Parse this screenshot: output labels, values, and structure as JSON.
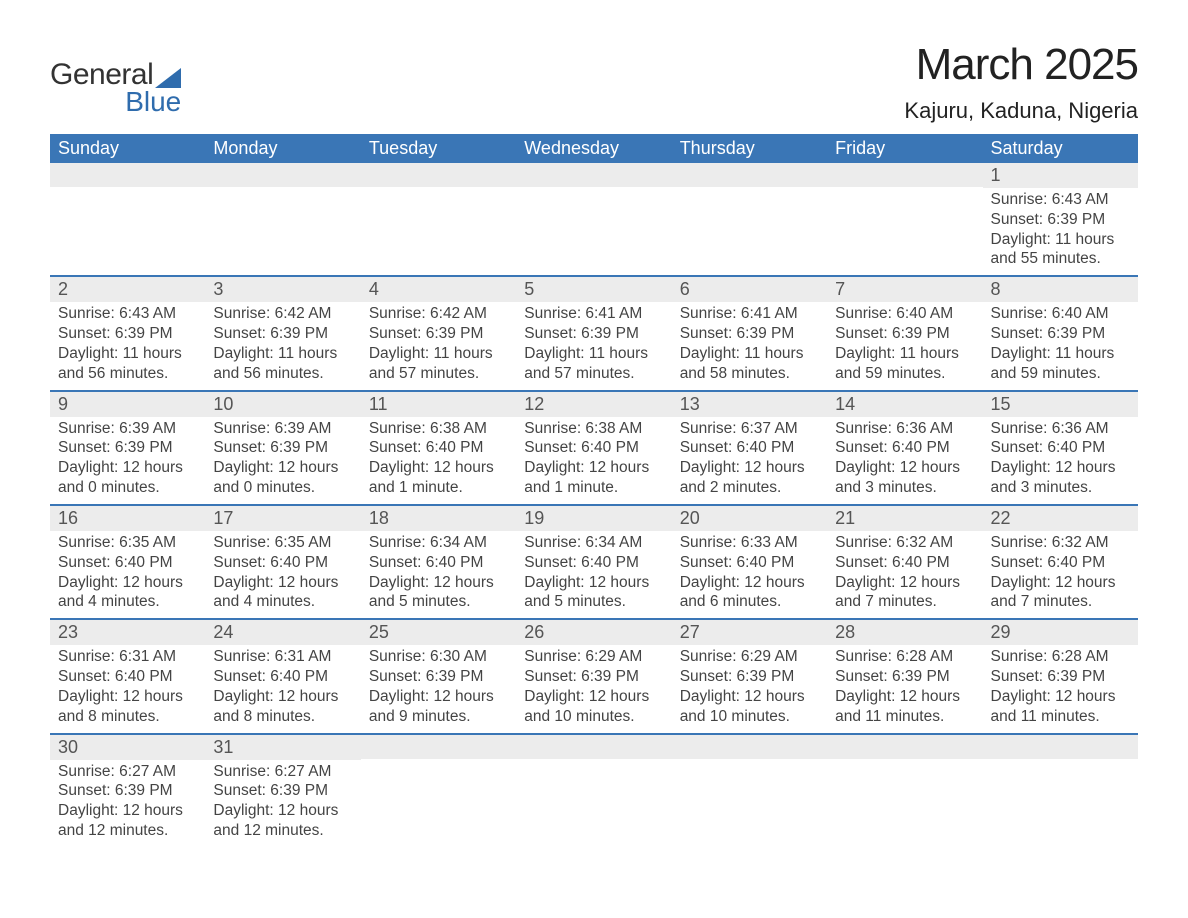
{
  "brand": {
    "general": "General",
    "blue": "Blue",
    "accent_color": "#2f6cad"
  },
  "title": "March 2025",
  "location": "Kajuru, Kaduna, Nigeria",
  "header_bg": "#3a76b6",
  "header_text_color": "#ffffff",
  "daynum_bg": "#ececec",
  "row_border_color": "#3a76b6",
  "body_text_color": "#444444",
  "fonts": {
    "title_size_pt": 33,
    "location_size_pt": 17,
    "header_size_pt": 14,
    "body_size_pt": 12
  },
  "weekdays": [
    "Sunday",
    "Monday",
    "Tuesday",
    "Wednesday",
    "Thursday",
    "Friday",
    "Saturday"
  ],
  "weeks": [
    [
      {
        "day": "",
        "sunrise": "",
        "sunset": "",
        "daylight": ""
      },
      {
        "day": "",
        "sunrise": "",
        "sunset": "",
        "daylight": ""
      },
      {
        "day": "",
        "sunrise": "",
        "sunset": "",
        "daylight": ""
      },
      {
        "day": "",
        "sunrise": "",
        "sunset": "",
        "daylight": ""
      },
      {
        "day": "",
        "sunrise": "",
        "sunset": "",
        "daylight": ""
      },
      {
        "day": "",
        "sunrise": "",
        "sunset": "",
        "daylight": ""
      },
      {
        "day": "1",
        "sunrise": "Sunrise: 6:43 AM",
        "sunset": "Sunset: 6:39 PM",
        "daylight": "Daylight: 11 hours and 55 minutes."
      }
    ],
    [
      {
        "day": "2",
        "sunrise": "Sunrise: 6:43 AM",
        "sunset": "Sunset: 6:39 PM",
        "daylight": "Daylight: 11 hours and 56 minutes."
      },
      {
        "day": "3",
        "sunrise": "Sunrise: 6:42 AM",
        "sunset": "Sunset: 6:39 PM",
        "daylight": "Daylight: 11 hours and 56 minutes."
      },
      {
        "day": "4",
        "sunrise": "Sunrise: 6:42 AM",
        "sunset": "Sunset: 6:39 PM",
        "daylight": "Daylight: 11 hours and 57 minutes."
      },
      {
        "day": "5",
        "sunrise": "Sunrise: 6:41 AM",
        "sunset": "Sunset: 6:39 PM",
        "daylight": "Daylight: 11 hours and 57 minutes."
      },
      {
        "day": "6",
        "sunrise": "Sunrise: 6:41 AM",
        "sunset": "Sunset: 6:39 PM",
        "daylight": "Daylight: 11 hours and 58 minutes."
      },
      {
        "day": "7",
        "sunrise": "Sunrise: 6:40 AM",
        "sunset": "Sunset: 6:39 PM",
        "daylight": "Daylight: 11 hours and 59 minutes."
      },
      {
        "day": "8",
        "sunrise": "Sunrise: 6:40 AM",
        "sunset": "Sunset: 6:39 PM",
        "daylight": "Daylight: 11 hours and 59 minutes."
      }
    ],
    [
      {
        "day": "9",
        "sunrise": "Sunrise: 6:39 AM",
        "sunset": "Sunset: 6:39 PM",
        "daylight": "Daylight: 12 hours and 0 minutes."
      },
      {
        "day": "10",
        "sunrise": "Sunrise: 6:39 AM",
        "sunset": "Sunset: 6:39 PM",
        "daylight": "Daylight: 12 hours and 0 minutes."
      },
      {
        "day": "11",
        "sunrise": "Sunrise: 6:38 AM",
        "sunset": "Sunset: 6:40 PM",
        "daylight": "Daylight: 12 hours and 1 minute."
      },
      {
        "day": "12",
        "sunrise": "Sunrise: 6:38 AM",
        "sunset": "Sunset: 6:40 PM",
        "daylight": "Daylight: 12 hours and 1 minute."
      },
      {
        "day": "13",
        "sunrise": "Sunrise: 6:37 AM",
        "sunset": "Sunset: 6:40 PM",
        "daylight": "Daylight: 12 hours and 2 minutes."
      },
      {
        "day": "14",
        "sunrise": "Sunrise: 6:36 AM",
        "sunset": "Sunset: 6:40 PM",
        "daylight": "Daylight: 12 hours and 3 minutes."
      },
      {
        "day": "15",
        "sunrise": "Sunrise: 6:36 AM",
        "sunset": "Sunset: 6:40 PM",
        "daylight": "Daylight: 12 hours and 3 minutes."
      }
    ],
    [
      {
        "day": "16",
        "sunrise": "Sunrise: 6:35 AM",
        "sunset": "Sunset: 6:40 PM",
        "daylight": "Daylight: 12 hours and 4 minutes."
      },
      {
        "day": "17",
        "sunrise": "Sunrise: 6:35 AM",
        "sunset": "Sunset: 6:40 PM",
        "daylight": "Daylight: 12 hours and 4 minutes."
      },
      {
        "day": "18",
        "sunrise": "Sunrise: 6:34 AM",
        "sunset": "Sunset: 6:40 PM",
        "daylight": "Daylight: 12 hours and 5 minutes."
      },
      {
        "day": "19",
        "sunrise": "Sunrise: 6:34 AM",
        "sunset": "Sunset: 6:40 PM",
        "daylight": "Daylight: 12 hours and 5 minutes."
      },
      {
        "day": "20",
        "sunrise": "Sunrise: 6:33 AM",
        "sunset": "Sunset: 6:40 PM",
        "daylight": "Daylight: 12 hours and 6 minutes."
      },
      {
        "day": "21",
        "sunrise": "Sunrise: 6:32 AM",
        "sunset": "Sunset: 6:40 PM",
        "daylight": "Daylight: 12 hours and 7 minutes."
      },
      {
        "day": "22",
        "sunrise": "Sunrise: 6:32 AM",
        "sunset": "Sunset: 6:40 PM",
        "daylight": "Daylight: 12 hours and 7 minutes."
      }
    ],
    [
      {
        "day": "23",
        "sunrise": "Sunrise: 6:31 AM",
        "sunset": "Sunset: 6:40 PM",
        "daylight": "Daylight: 12 hours and 8 minutes."
      },
      {
        "day": "24",
        "sunrise": "Sunrise: 6:31 AM",
        "sunset": "Sunset: 6:40 PM",
        "daylight": "Daylight: 12 hours and 8 minutes."
      },
      {
        "day": "25",
        "sunrise": "Sunrise: 6:30 AM",
        "sunset": "Sunset: 6:39 PM",
        "daylight": "Daylight: 12 hours and 9 minutes."
      },
      {
        "day": "26",
        "sunrise": "Sunrise: 6:29 AM",
        "sunset": "Sunset: 6:39 PM",
        "daylight": "Daylight: 12 hours and 10 minutes."
      },
      {
        "day": "27",
        "sunrise": "Sunrise: 6:29 AM",
        "sunset": "Sunset: 6:39 PM",
        "daylight": "Daylight: 12 hours and 10 minutes."
      },
      {
        "day": "28",
        "sunrise": "Sunrise: 6:28 AM",
        "sunset": "Sunset: 6:39 PM",
        "daylight": "Daylight: 12 hours and 11 minutes."
      },
      {
        "day": "29",
        "sunrise": "Sunrise: 6:28 AM",
        "sunset": "Sunset: 6:39 PM",
        "daylight": "Daylight: 12 hours and 11 minutes."
      }
    ],
    [
      {
        "day": "30",
        "sunrise": "Sunrise: 6:27 AM",
        "sunset": "Sunset: 6:39 PM",
        "daylight": "Daylight: 12 hours and 12 minutes."
      },
      {
        "day": "31",
        "sunrise": "Sunrise: 6:27 AM",
        "sunset": "Sunset: 6:39 PM",
        "daylight": "Daylight: 12 hours and 12 minutes."
      },
      {
        "day": "",
        "sunrise": "",
        "sunset": "",
        "daylight": ""
      },
      {
        "day": "",
        "sunrise": "",
        "sunset": "",
        "daylight": ""
      },
      {
        "day": "",
        "sunrise": "",
        "sunset": "",
        "daylight": ""
      },
      {
        "day": "",
        "sunrise": "",
        "sunset": "",
        "daylight": ""
      },
      {
        "day": "",
        "sunrise": "",
        "sunset": "",
        "daylight": ""
      }
    ]
  ]
}
